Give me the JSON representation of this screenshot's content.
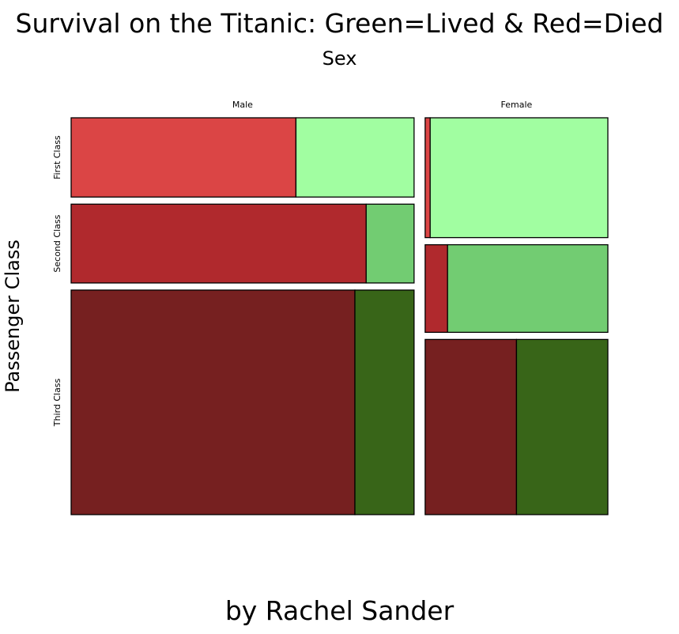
{
  "title": "Survival on the Titanic: Green=Lived & Red=Died",
  "subtitle": "Sex",
  "ylabel": "Passenger Class",
  "footer": "by Rachel Sander",
  "chart_data": {
    "type": "mosaic",
    "x_variable": "Sex",
    "y_variable": "Passenger Class",
    "x_categories": [
      "Male",
      "Female"
    ],
    "y_categories": [
      "First Class",
      "Second Class",
      "Third Class"
    ],
    "fill_categories": [
      "Died",
      "Lived"
    ],
    "colors": {
      "First Class": {
        "Died": "#db4545",
        "Lived": "#a1fea1"
      },
      "Second Class": {
        "Died": "#b0292d",
        "Lived": "#72cc72"
      },
      "Third Class": {
        "Died": "#762020",
        "Lived": "#386518"
      }
    },
    "cells": [
      {
        "sex": "Male",
        "class": "First Class",
        "died": 118,
        "lived": 62
      },
      {
        "sex": "Male",
        "class": "Second Class",
        "died": 154,
        "lived": 25
      },
      {
        "sex": "Male",
        "class": "Third Class",
        "died": 422,
        "lived": 88
      },
      {
        "sex": "Female",
        "class": "First Class",
        "died": 4,
        "lived": 141
      },
      {
        "sex": "Female",
        "class": "Second Class",
        "died": 13,
        "lived": 93
      },
      {
        "sex": "Female",
        "class": "Third Class",
        "died": 106,
        "lived": 106
      }
    ]
  }
}
